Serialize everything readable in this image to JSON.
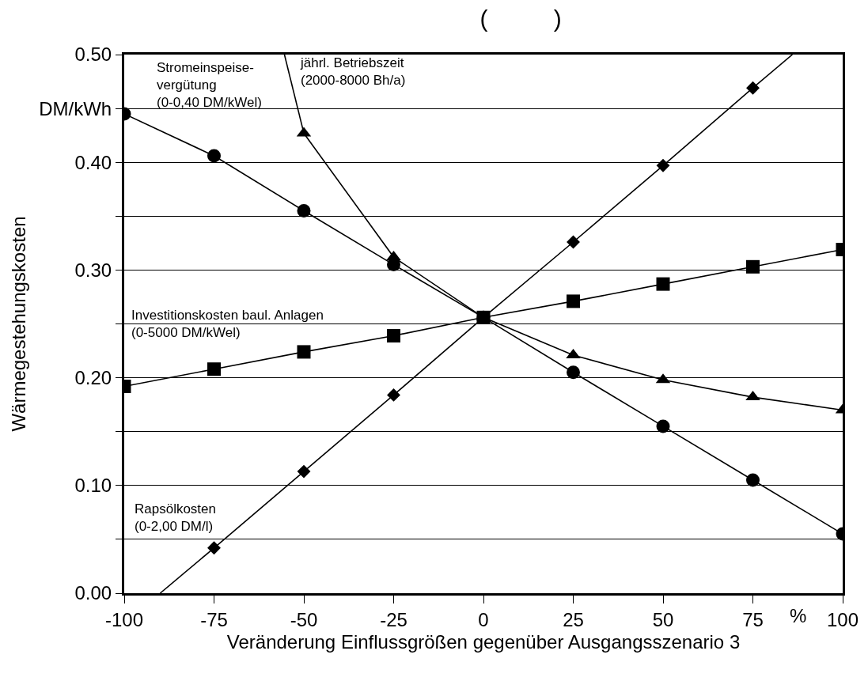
{
  "chart_data": {
    "type": "line",
    "title": "(          )",
    "xlabel": "Veränderung Einflussgrößen gegenüber Ausgangsszenario 3",
    "ylabel": "Wärmegestehungskosten",
    "x": [
      -100,
      -75,
      -50,
      -25,
      0,
      25,
      50,
      75,
      100
    ],
    "series": [
      {
        "name": "Stromeinspeise-\nvergütung\n(0-0,40 DM/kWel)",
        "color": "#000000",
        "marker": "circle",
        "values": [
          0.445,
          0.406,
          0.355,
          0.305,
          0.256,
          0.205,
          0.155,
          0.105,
          0.055
        ]
      },
      {
        "name": "jährl. Betriebszeit\n(2000-8000 Bh/a)",
        "color": "#000000",
        "marker": "triangle",
        "values": [
          null,
          null,
          0.427,
          0.312,
          0.256,
          0.221,
          0.198,
          0.182,
          0.17
        ]
      },
      {
        "name": "Investitionskosten baul. Anlagen\n(0-5000 DM/kWel)",
        "color": "#000000",
        "marker": "square",
        "values": [
          0.192,
          0.208,
          0.224,
          0.239,
          0.256,
          0.271,
          0.287,
          0.303,
          0.319
        ]
      },
      {
        "name": "Rapsölkosten\n(0-2,00 DM/l)",
        "color": "#000000",
        "marker": "diamond",
        "values": [
          null,
          0.042,
          0.113,
          0.184,
          0.256,
          0.326,
          0.397,
          0.469,
          null
        ]
      },
      {
        "color": "#000000",
        "marker": "none",
        "x": [
          -55.4,
          -50
        ],
        "values": [
          0.5,
          0.427
        ]
      },
      {
        "color": "#000000",
        "marker": "none",
        "x": [
          -90,
          -75
        ],
        "values": [
          0,
          0.042
        ]
      },
      {
        "color": "#000000",
        "marker": "none",
        "x": [
          75,
          86
        ],
        "values": [
          0.469,
          0.5
        ]
      }
    ],
    "xlim": [
      -100,
      100
    ],
    "xticks": [
      -100,
      -75,
      -50,
      -25,
      0,
      25,
      50,
      75,
      100
    ],
    "ylim": [
      0,
      0.5
    ],
    "yticks": [
      {
        "value": 0,
        "label": "0.00"
      },
      {
        "value": 0.05,
        "label": null
      },
      {
        "value": 0.1,
        "label": "0.10"
      },
      {
        "value": 0.15,
        "label": null
      },
      {
        "value": 0.2,
        "label": "0.20"
      },
      {
        "value": 0.25,
        "label": null
      },
      {
        "value": 0.3,
        "label": "0.30"
      },
      {
        "value": 0.35,
        "label": null
      },
      {
        "value": 0.4,
        "label": "0.40"
      },
      {
        "value": 0.45,
        "label": "DM/kWh"
      },
      {
        "value": 0.5,
        "label": "0.50"
      }
    ],
    "annotations": [
      "%"
    ],
    "grid": "y",
    "line_style": "solid"
  }
}
